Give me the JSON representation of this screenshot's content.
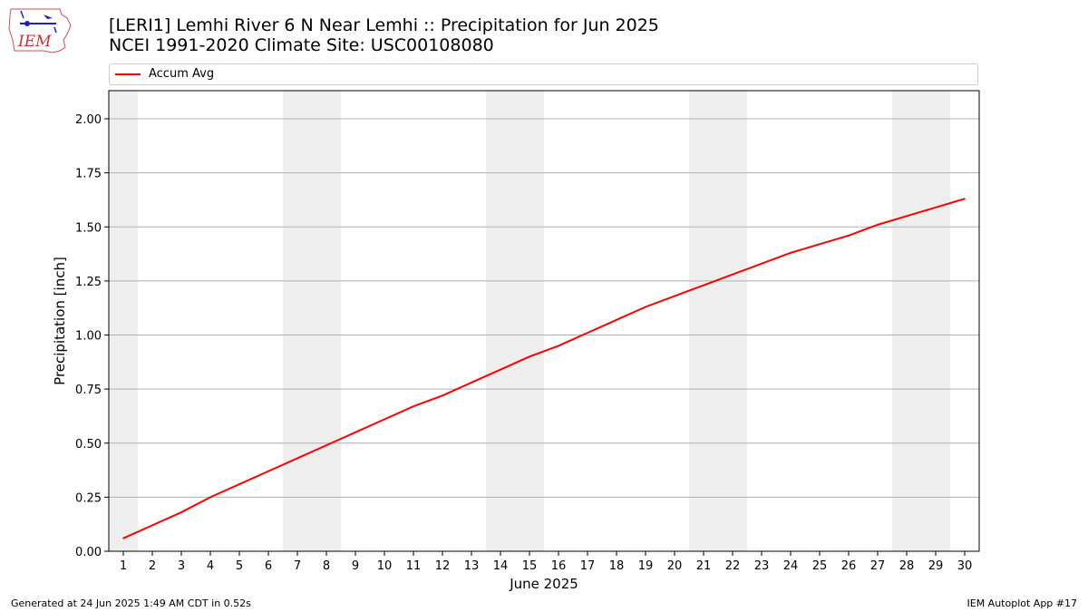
{
  "titles": {
    "line1": "[LERI1] Lemhi River 6 N Near Lemhi :: Precipitation for Jun 2025",
    "line2": "NCEI 1991-2020 Climate Site: USC00108080"
  },
  "logo": {
    "text": "IEM",
    "icon": "iem-state-logo"
  },
  "legend": {
    "placement": "top",
    "entries": [
      "Accum Avg"
    ]
  },
  "footer": {
    "left": "Generated at 24 Jun 2025 1:49 AM CDT in 0.52s",
    "right": "IEM Autoplot App #17"
  },
  "colors": {
    "series": "#ff0000",
    "weekend_shade": "#eeeeee",
    "grid": "#b0b0b0"
  },
  "chart_data": {
    "type": "line",
    "xlabel": "June 2025",
    "ylabel": "Precipitation [inch]",
    "xlim": [
      0.5,
      30.5
    ],
    "ylim": [
      0,
      2.13
    ],
    "grid": "horizontal",
    "x": [
      1,
      2,
      3,
      4,
      5,
      6,
      7,
      8,
      9,
      10,
      11,
      12,
      13,
      14,
      15,
      16,
      17,
      18,
      19,
      20,
      21,
      22,
      23,
      24,
      25,
      26,
      27,
      28,
      29,
      30
    ],
    "xticks": [
      "1",
      "2",
      "3",
      "4",
      "5",
      "6",
      "7",
      "8",
      "9",
      "10",
      "11",
      "12",
      "13",
      "14",
      "15",
      "16",
      "17",
      "18",
      "19",
      "20",
      "21",
      "22",
      "23",
      "24",
      "25",
      "26",
      "27",
      "28",
      "29",
      "30"
    ],
    "yticks": [
      0,
      0.25,
      0.5,
      0.75,
      1.0,
      1.25,
      1.5,
      1.75,
      2.0
    ],
    "ytick_labels": [
      "0.00",
      "0.25",
      "0.50",
      "0.75",
      "1.00",
      "1.25",
      "1.50",
      "1.75",
      "2.00"
    ],
    "weekend_bands": [
      [
        0.5,
        1.5
      ],
      [
        6.5,
        8.5
      ],
      [
        13.5,
        15.5
      ],
      [
        20.5,
        22.5
      ],
      [
        27.5,
        29.5
      ]
    ],
    "series": [
      {
        "name": "Accum Avg",
        "color": "#ff0000",
        "values": [
          0.06,
          0.12,
          0.18,
          0.25,
          0.31,
          0.37,
          0.43,
          0.49,
          0.55,
          0.61,
          0.67,
          0.72,
          0.78,
          0.84,
          0.9,
          0.95,
          1.01,
          1.07,
          1.13,
          1.18,
          1.23,
          1.28,
          1.33,
          1.38,
          1.42,
          1.46,
          1.51,
          1.55,
          1.59,
          1.63
        ]
      }
    ]
  }
}
